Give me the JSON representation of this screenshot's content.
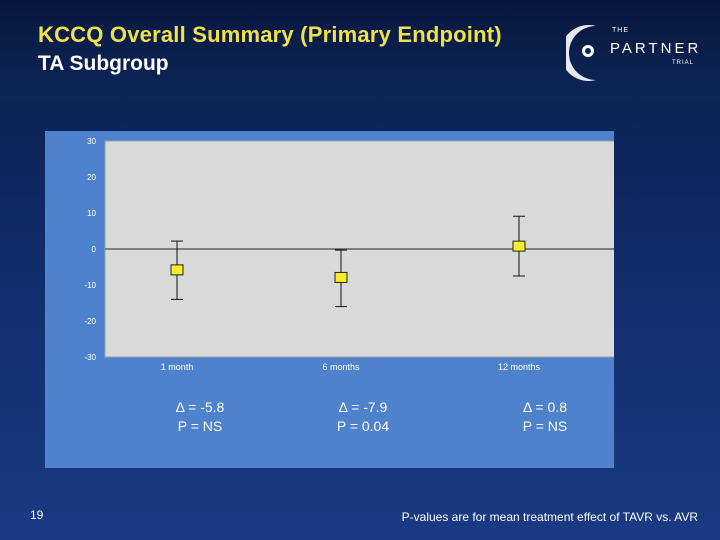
{
  "slide": {
    "title": "KCCQ Overall Summary (Primary Endpoint)",
    "subtitle": "TA Subgroup",
    "slide_number": "19",
    "footnote": "P-values are for mean treatment effect of TAVR vs. AVR"
  },
  "logo": {
    "small_text": "THE",
    "name": "PARTNER",
    "tag": "TRIAL"
  },
  "colors": {
    "title": "#f2e04a",
    "panel": "#4f82cc",
    "plot_area": "#d9d9d9",
    "marker": "#f5ec2a"
  },
  "stats": [
    {
      "delta": "Δ = -5.8",
      "p": "P = NS"
    },
    {
      "delta": "Δ = -7.9",
      "p": "P = 0.04"
    },
    {
      "delta": "Δ = 0.8",
      "p": "P = NS"
    }
  ],
  "chart_data": {
    "type": "scatter",
    "categories": [
      "1 month",
      "6 months",
      "12 months"
    ],
    "values": [
      -5.8,
      -7.9,
      0.8
    ],
    "error_low": [
      -14,
      -16,
      -7.5
    ],
    "error_high": [
      2.2,
      -0.3,
      9.1
    ],
    "ylim": [
      -30,
      30
    ],
    "yticks": [
      "30",
      "20",
      "10",
      "0",
      "-10",
      "-20",
      "-30"
    ],
    "zero_line": true,
    "grid": false,
    "xlabel": "",
    "ylabel": ""
  }
}
